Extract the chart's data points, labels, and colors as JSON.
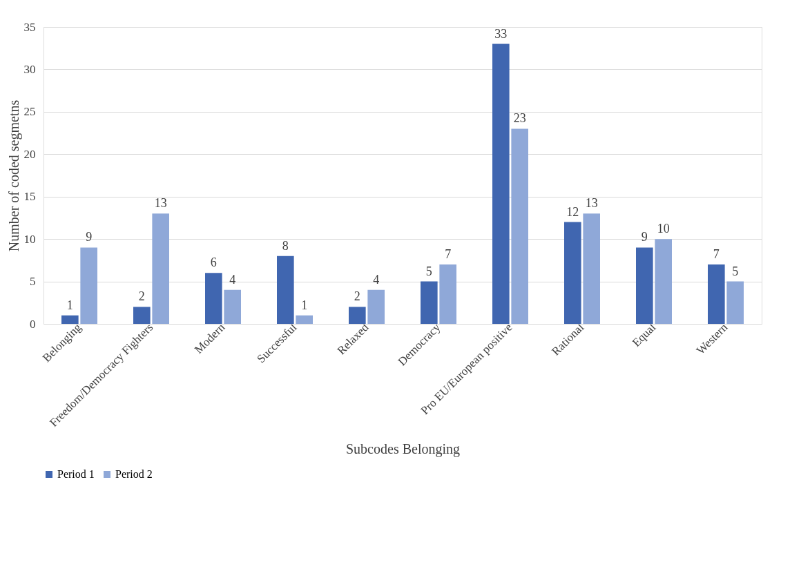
{
  "chart_data": {
    "type": "bar",
    "xlabel": "Subcodes Belonging",
    "ylabel": "Number of coded segmetns",
    "categories": [
      "Belonging",
      "Freedom/Democracy Fighters",
      "Modern",
      "Successful",
      "Relaxed",
      "Democracy",
      "Pro EU/European positive",
      "Rational",
      "Equal",
      "Western"
    ],
    "series": [
      {
        "name": "Period 1",
        "color": "#4066b0",
        "values": [
          1,
          2,
          6,
          8,
          2,
          5,
          33,
          12,
          9,
          7
        ]
      },
      {
        "name": "Period 2",
        "color": "#8fa8d8",
        "values": [
          9,
          13,
          4,
          1,
          4,
          7,
          23,
          13,
          10,
          5
        ]
      }
    ],
    "ylim": [
      0,
      35
    ],
    "yticks": [
      0,
      5,
      10,
      15,
      20,
      25,
      30,
      35
    ],
    "grid": "y",
    "legend": "bottom",
    "data_labels": true
  }
}
